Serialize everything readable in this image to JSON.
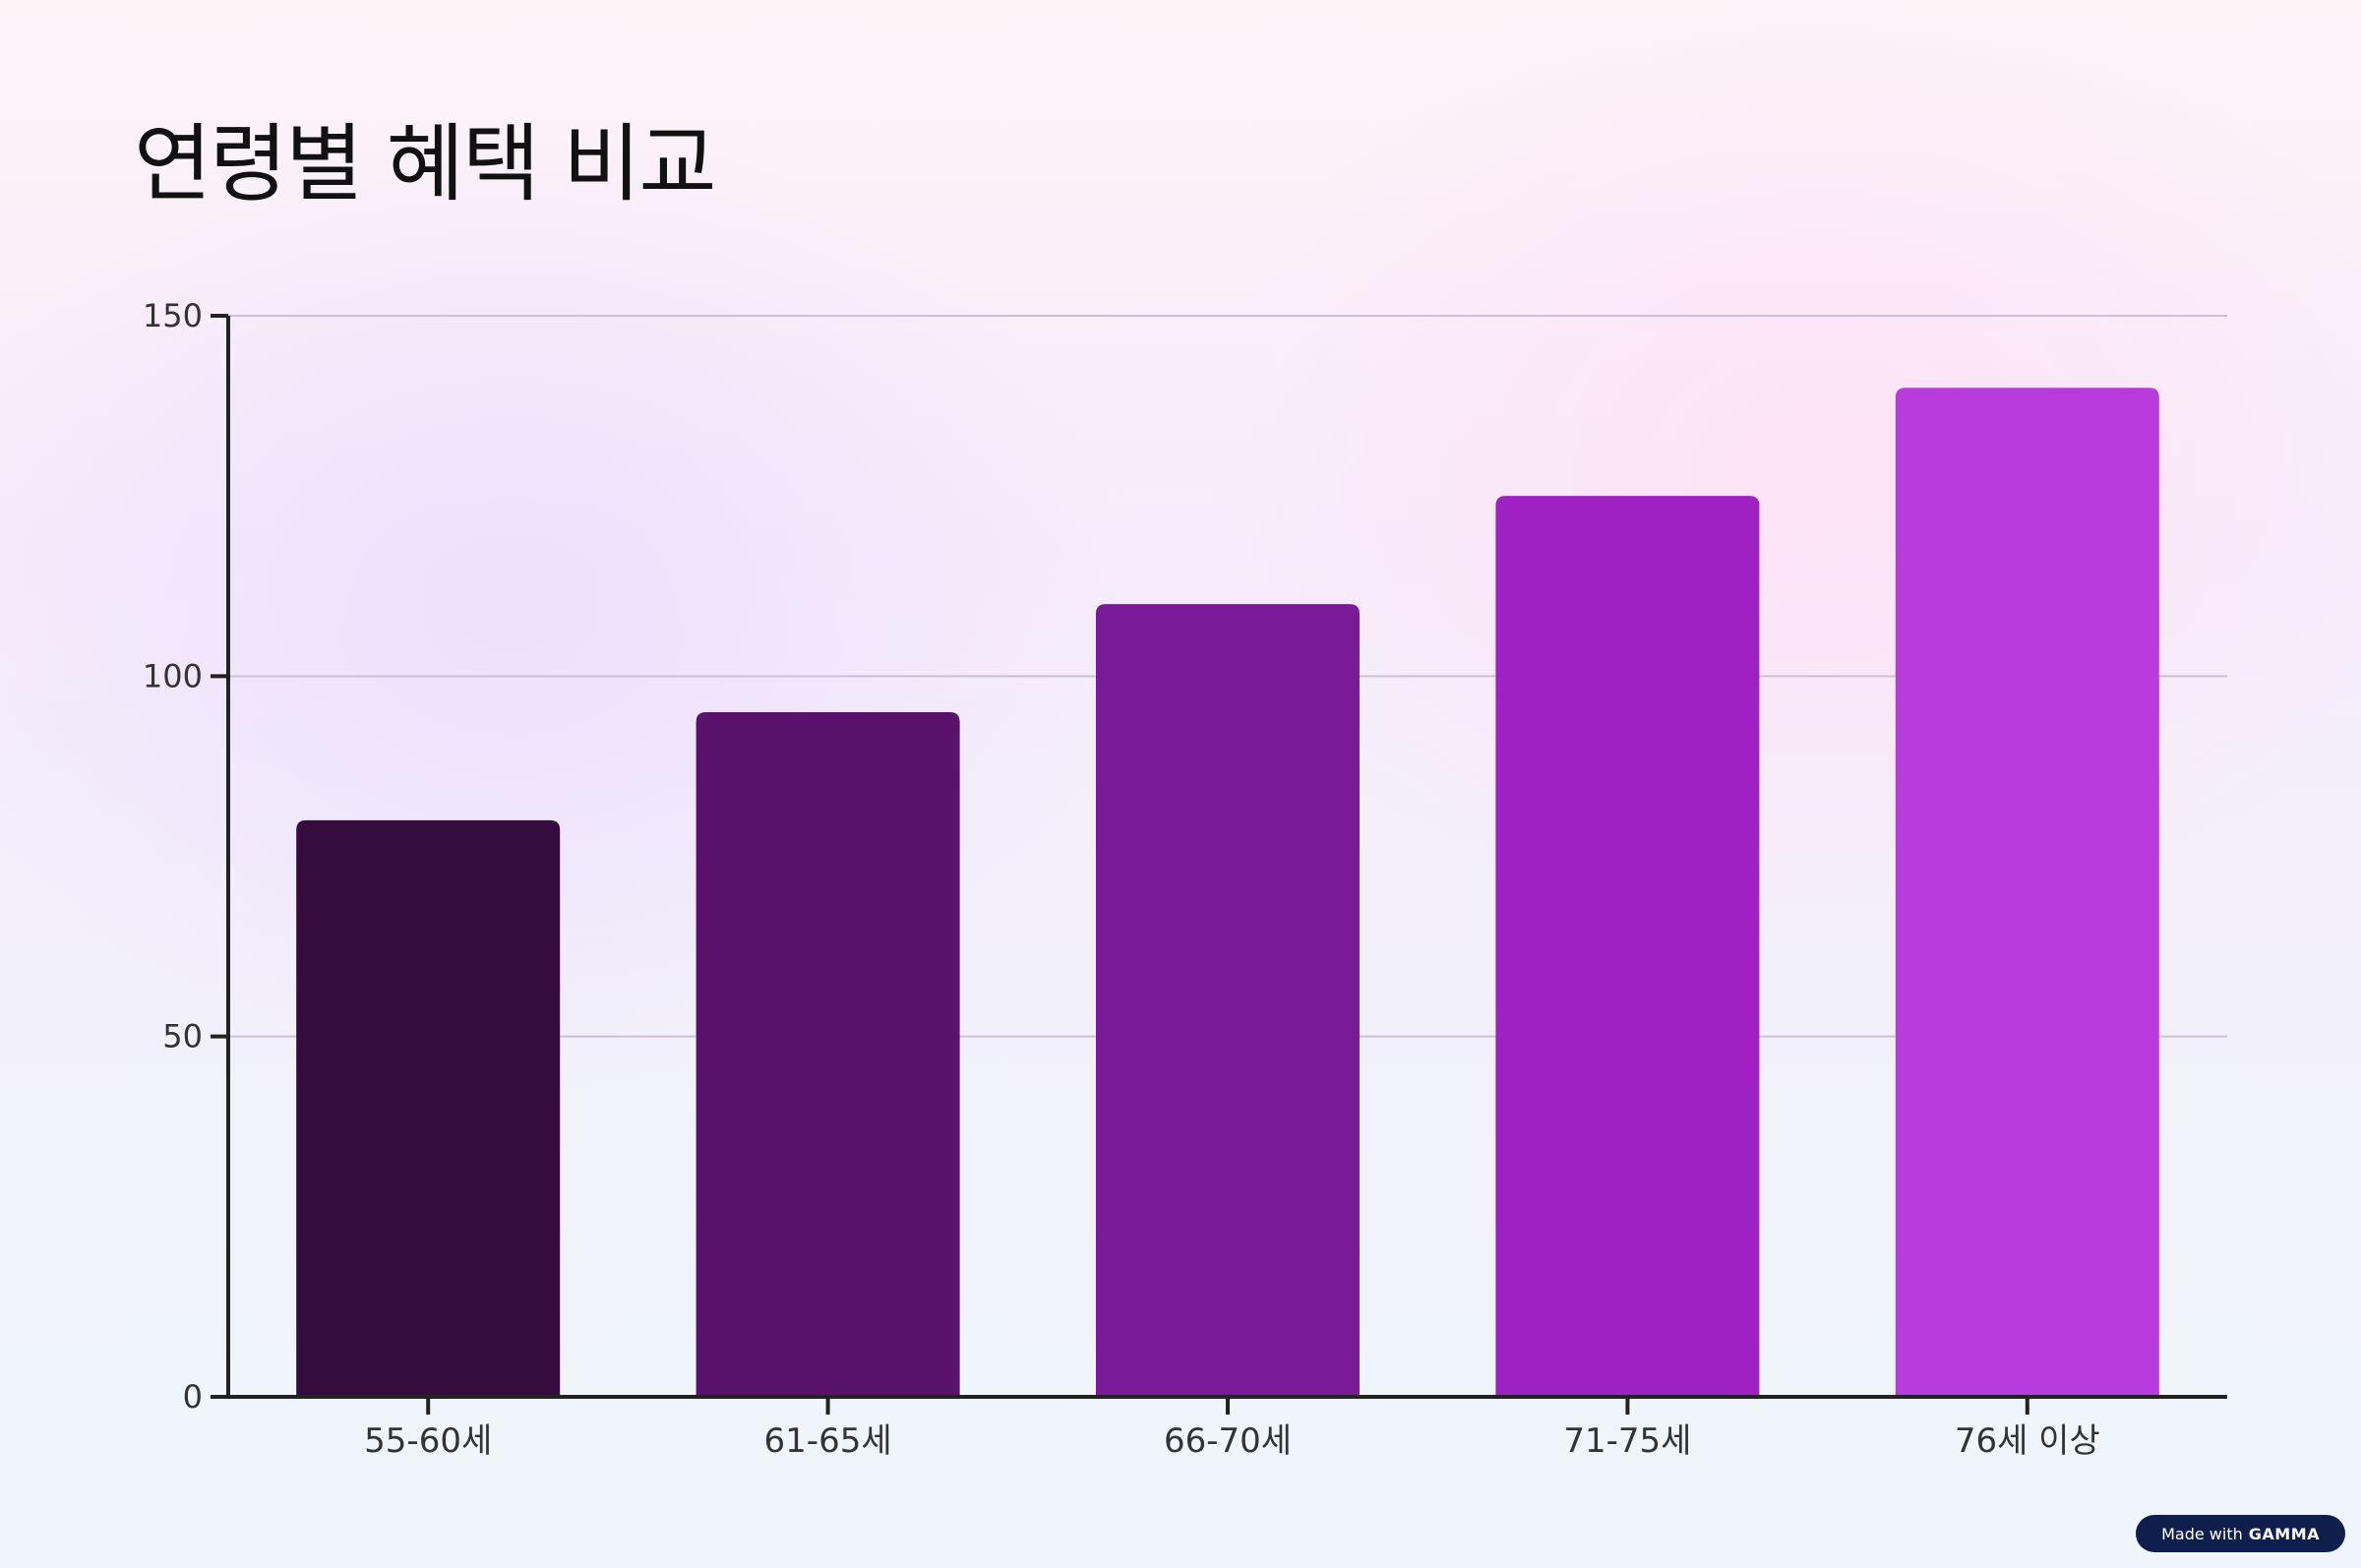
{
  "title": "연령별 혜택 비교",
  "badge": {
    "text": "Made with",
    "brand": "GAMMA"
  },
  "chart_data": {
    "type": "bar",
    "title": "연령별 혜택 비교",
    "xlabel": "",
    "ylabel": "",
    "categories": [
      "55-60세",
      "61-65세",
      "66-70세",
      "71-75세",
      "76세 이상"
    ],
    "values": [
      80,
      95,
      110,
      125,
      140
    ],
    "colors": [
      "#360b3e",
      "#58126b",
      "#7a1a98",
      "#9f21c4",
      "#b83bdd"
    ],
    "ylim": [
      0,
      150
    ],
    "yticks": [
      0,
      50,
      100,
      150
    ],
    "grid": true,
    "legend": "none"
  }
}
